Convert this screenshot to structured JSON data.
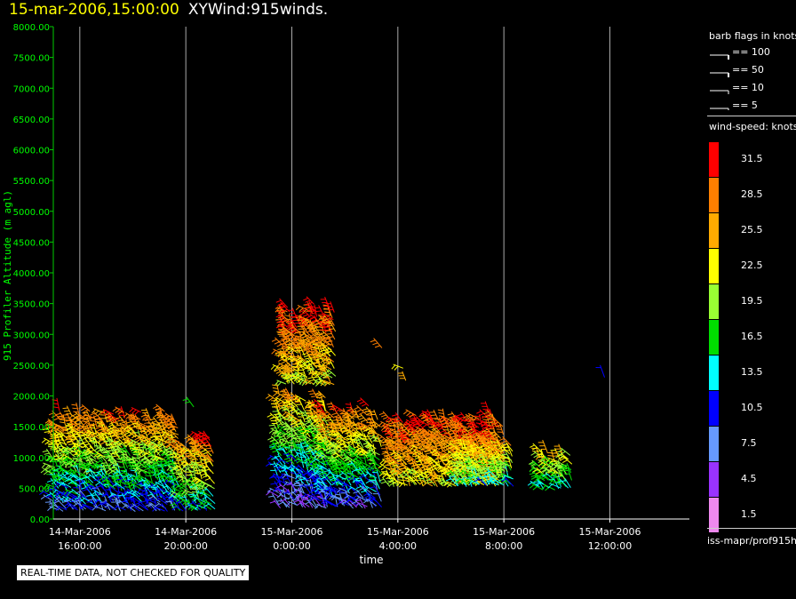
{
  "header": {
    "timestamp": "15-mar-2006,15:00:00",
    "plot_label": "XYWind:915winds."
  },
  "colors": {
    "background": "#000000",
    "axis": "#00cc00",
    "axis_text": "#00ff00",
    "grid": "#aaaaaa",
    "tick_text": "#ffffff",
    "timestamp": "#ffff00"
  },
  "legend": {
    "barb_title": "barb flags in knots",
    "barbs": [
      {
        "label": "== 100",
        "knots": 100
      },
      {
        "label": "== 50",
        "knots": 50
      },
      {
        "label": "== 10",
        "knots": 10
      },
      {
        "label": "== 5",
        "knots": 5
      }
    ],
    "speed_title": "wind-speed: knots",
    "speed_bins": [
      {
        "label": "31.5",
        "color": "#ff0000"
      },
      {
        "label": "28.5",
        "color": "#ff7f00"
      },
      {
        "label": "25.5",
        "color": "#ffaa00"
      },
      {
        "label": "22.5",
        "color": "#ffff00"
      },
      {
        "label": "19.5",
        "color": "#99ff33"
      },
      {
        "label": "16.5",
        "color": "#00dd00"
      },
      {
        "label": "13.5",
        "color": "#00ffff"
      },
      {
        "label": "10.5",
        "color": "#0000ff"
      },
      {
        "label": "7.5",
        "color": "#6699ff"
      },
      {
        "label": "4.5",
        "color": "#9933ff"
      },
      {
        "label": "1.5",
        "color": "#ee88ee"
      }
    ],
    "source": "iss-mapr/prof915h"
  },
  "footer": {
    "quality_notice": "REAL-TIME DATA, NOT CHECKED FOR QUALITY"
  },
  "chart_data": {
    "type": "scatter",
    "title": "15-mar-2006,15:00:00  XYWind:915winds.",
    "xlabel": "time",
    "ylabel": "915 Profiler Altitude (m agl)",
    "x_ticks": [
      {
        "line1": "14-Mar-2006",
        "line2": "16:00:00",
        "hour": 0
      },
      {
        "line1": "14-Mar-2006",
        "line2": "20:00:00",
        "hour": 4
      },
      {
        "line1": "15-Mar-2006",
        "line2": "0:00:00",
        "hour": 8
      },
      {
        "line1": "15-Mar-2006",
        "line2": "4:00:00",
        "hour": 12
      },
      {
        "line1": "15-Mar-2006",
        "line2": "8:00:00",
        "hour": 16
      },
      {
        "line1": "15-Mar-2006",
        "line2": "12:00:00",
        "hour": 20
      }
    ],
    "xlim_hours": [
      -1.0,
      23.0
    ],
    "ylim": [
      0,
      8000
    ],
    "y_ticks": [
      "0.00",
      "500.00",
      "1000.00",
      "1500.00",
      "2000.00",
      "2500.00",
      "3000.00",
      "3500.00",
      "4000.00",
      "4500.00",
      "5000.00",
      "5500.00",
      "6000.00",
      "6500.00",
      "7000.00",
      "7500.00",
      "8000.00"
    ],
    "grid": "vertical",
    "wind_clusters": [
      {
        "t0": -1.0,
        "t1": 3.8,
        "alt_bottom": 150,
        "alt_top": 1850,
        "speed_bottom": 9,
        "speed_top": 31
      },
      {
        "t0": 3.8,
        "t1": 5.1,
        "alt_bottom": 150,
        "alt_top": 1400,
        "speed_bottom": 13,
        "speed_top": 31
      },
      {
        "t0": 7.5,
        "t1": 9.4,
        "alt_bottom": 200,
        "alt_top": 2100,
        "speed_bottom": 6,
        "speed_top": 28
      },
      {
        "t0": 7.7,
        "t1": 9.7,
        "alt_bottom": 2200,
        "alt_top": 3500,
        "speed_bottom": 22,
        "speed_top": 32
      },
      {
        "t0": 9.2,
        "t1": 11.4,
        "alt_bottom": 200,
        "alt_top": 1850,
        "speed_bottom": 8,
        "speed_top": 31
      },
      {
        "t0": 11.7,
        "t1": 16.0,
        "alt_bottom": 550,
        "alt_top": 1750,
        "speed_bottom": 22,
        "speed_top": 32
      },
      {
        "t0": 14.2,
        "t1": 16.4,
        "alt_bottom": 550,
        "alt_top": 1300,
        "speed_bottom": 14,
        "speed_top": 29
      },
      {
        "t0": 17.3,
        "t1": 18.6,
        "alt_bottom": 500,
        "alt_top": 1100,
        "speed_bottom": 15,
        "speed_top": 24
      }
    ],
    "wind_isolated": [
      {
        "t": 4.3,
        "alt": 1820,
        "speed": 16
      },
      {
        "t": 11.4,
        "alt": 2780,
        "speed": 27
      },
      {
        "t": 12.2,
        "alt": 2450,
        "speed": 23
      },
      {
        "t": 12.3,
        "alt": 2250,
        "speed": 25
      },
      {
        "t": 19.8,
        "alt": 2300,
        "speed": 10
      },
      {
        "t": 4.9,
        "alt": 1320,
        "speed": 30
      }
    ]
  }
}
